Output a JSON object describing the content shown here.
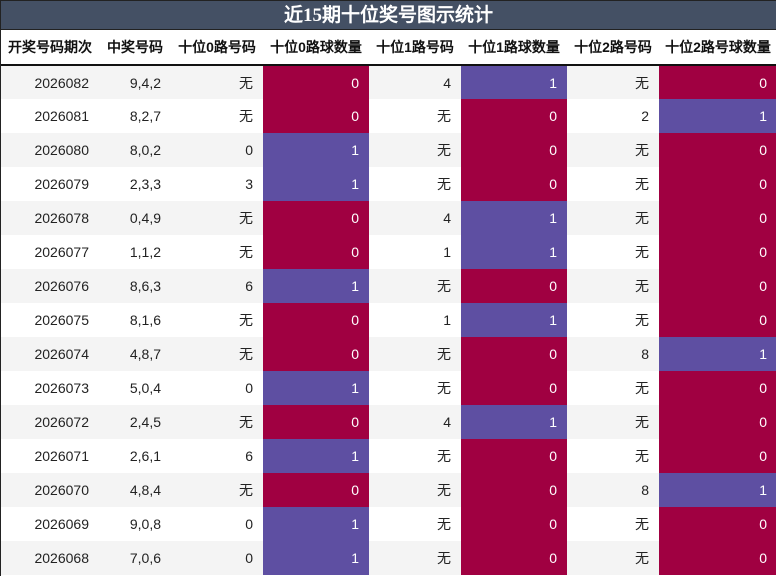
{
  "title": "近15期十位奖号图示统计",
  "colors": {
    "header_bg": "#445064",
    "zero": "#a00041",
    "one": "#5e4fa2",
    "stripe": "#f4f4f4"
  },
  "columns": [
    "开奖号码期次",
    "中奖号码",
    "十位0路号码",
    "十位0路球数量",
    "十位1路号码",
    "十位1路球数量",
    "十位2路号码",
    "十位2路号球数量"
  ],
  "rows": [
    [
      "2026082",
      "9,4,2",
      "无",
      "0",
      "4",
      "1",
      "无",
      "0"
    ],
    [
      "2026081",
      "8,2,7",
      "无",
      "0",
      "无",
      "0",
      "2",
      "1"
    ],
    [
      "2026080",
      "8,0,2",
      "0",
      "1",
      "无",
      "0",
      "无",
      "0"
    ],
    [
      "2026079",
      "2,3,3",
      "3",
      "1",
      "无",
      "0",
      "无",
      "0"
    ],
    [
      "2026078",
      "0,4,9",
      "无",
      "0",
      "4",
      "1",
      "无",
      "0"
    ],
    [
      "2026077",
      "1,1,2",
      "无",
      "0",
      "1",
      "1",
      "无",
      "0"
    ],
    [
      "2026076",
      "8,6,3",
      "6",
      "1",
      "无",
      "0",
      "无",
      "0"
    ],
    [
      "2026075",
      "8,1,6",
      "无",
      "0",
      "1",
      "1",
      "无",
      "0"
    ],
    [
      "2026074",
      "4,8,7",
      "无",
      "0",
      "无",
      "0",
      "8",
      "1"
    ],
    [
      "2026073",
      "5,0,4",
      "0",
      "1",
      "无",
      "0",
      "无",
      "0"
    ],
    [
      "2026072",
      "2,4,5",
      "无",
      "0",
      "4",
      "1",
      "无",
      "0"
    ],
    [
      "2026071",
      "2,6,1",
      "6",
      "1",
      "无",
      "0",
      "无",
      "0"
    ],
    [
      "2026070",
      "4,8,4",
      "无",
      "0",
      "无",
      "0",
      "8",
      "1"
    ],
    [
      "2026069",
      "9,0,8",
      "0",
      "1",
      "无",
      "0",
      "无",
      "0"
    ],
    [
      "2026068",
      "7,0,6",
      "0",
      "1",
      "无",
      "0",
      "无",
      "0"
    ]
  ]
}
